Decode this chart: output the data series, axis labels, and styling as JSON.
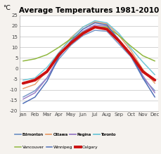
{
  "title": "Average Temperatures 1981-2010",
  "ylabel": "°C",
  "months": [
    "Jan",
    "Feb",
    "Mar",
    "Apr",
    "May",
    "Jun",
    "Jul",
    "Aug",
    "Sep",
    "Oct",
    "Nov",
    "Dec"
  ],
  "ylim": [
    -20,
    25
  ],
  "yticks": [
    -20,
    -15,
    -10,
    -5,
    0,
    5,
    10,
    15,
    20,
    25
  ],
  "series": {
    "Edmonton": [
      -13.5,
      -10.5,
      -4.5,
      4.5,
      11.0,
      15.5,
      18.0,
      17.5,
      11.5,
      5.5,
      -4.5,
      -10.5
    ],
    "Ottawa": [
      -9.5,
      -7.5,
      -1.0,
      7.5,
      14.5,
      19.5,
      22.0,
      21.0,
      15.5,
      8.5,
      -0.5,
      -7.0
    ],
    "Regina": [
      -14.5,
      -11.5,
      -4.5,
      5.5,
      12.5,
      17.5,
      20.5,
      20.0,
      13.5,
      6.5,
      -3.5,
      -11.5
    ],
    "Toronto": [
      -5.5,
      -4.5,
      0.5,
      7.5,
      14.0,
      19.5,
      22.5,
      21.5,
      16.5,
      9.5,
      3.0,
      -3.0
    ],
    "Vancouver": [
      3.5,
      4.5,
      6.5,
      10.0,
      14.0,
      17.0,
      19.5,
      19.5,
      15.5,
      10.5,
      6.0,
      3.5
    ],
    "Winnipeg": [
      -16.5,
      -13.5,
      -6.0,
      5.5,
      13.0,
      18.5,
      21.5,
      20.5,
      13.5,
      6.5,
      -4.5,
      -13.5
    ],
    "Calgary": [
      -7.0,
      -5.5,
      -1.5,
      6.5,
      12.0,
      16.5,
      19.5,
      18.5,
      13.0,
      6.5,
      -1.5,
      -5.5
    ]
  },
  "colors": {
    "Edmonton": "#7b9ac9",
    "Ottawa": "#e8a070",
    "Regina": "#9b80c8",
    "Toronto": "#72c8d8",
    "Vancouver": "#90b840",
    "Winnipeg": "#5070b8",
    "Calgary": "#cc1111"
  },
  "linewidths": {
    "Edmonton": 1.1,
    "Ottawa": 1.1,
    "Regina": 1.1,
    "Toronto": 1.1,
    "Vancouver": 1.1,
    "Winnipeg": 1.1,
    "Calgary": 2.8
  },
  "plot_order": [
    "Edmonton",
    "Ottawa",
    "Regina",
    "Toronto",
    "Vancouver",
    "Winnipeg",
    "Calgary"
  ],
  "legend_row1": [
    "Edmonton",
    "Ottawa",
    "Regina",
    "Toronto"
  ],
  "legend_row2": [
    "Vancouver",
    "Winnipeg",
    "Calgary"
  ],
  "bg_color": "#f5f2ee",
  "plot_bg": "#ffffff"
}
